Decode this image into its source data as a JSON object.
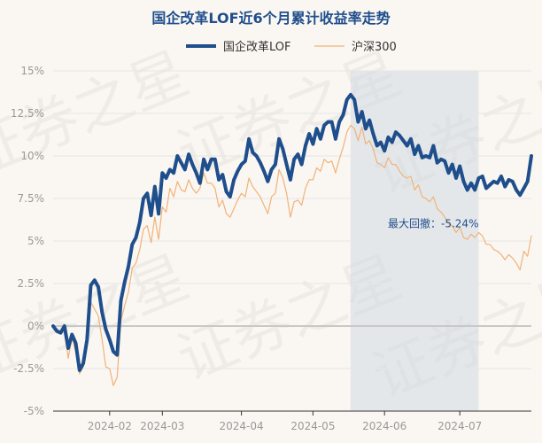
{
  "chart_data": {
    "type": "line",
    "title": "国企改革LOF近6个月累计收益率走势",
    "y_unit": "%",
    "ylim": [
      -5,
      15
    ],
    "yticks": [
      -5,
      -2.5,
      0,
      2.5,
      5,
      7.5,
      10,
      12.5,
      15
    ],
    "ytick_labels": [
      "-5%",
      "-2.5%",
      "0%",
      "2.5%",
      "5%",
      "7.5%",
      "10%",
      "12.5%",
      "15%"
    ],
    "x_range": [
      0,
      127
    ],
    "xticks": [
      {
        "label": "2024-02",
        "x": 15
      },
      {
        "label": "2024-03",
        "x": 29
      },
      {
        "label": "2024-04",
        "x": 50
      },
      {
        "label": "2024-05",
        "x": 69
      },
      {
        "label": "2024-06",
        "x": 88
      },
      {
        "label": "2024-07",
        "x": 108
      }
    ],
    "grid": true,
    "legend": "top-center",
    "max_drawdown": {
      "label": "最大回撤：-5.24%",
      "x_start": 79,
      "x_end": 113
    },
    "watermark": "证券之星",
    "series": [
      {
        "name": "国企改革LOF",
        "color": "#1f4e8c",
        "values": [
          0.0,
          -0.3,
          -0.4,
          0.0,
          -1.3,
          -0.5,
          -1.0,
          -2.6,
          -2.2,
          -0.8,
          2.4,
          2.7,
          2.3,
          0.8,
          -0.2,
          -0.8,
          -1.5,
          -1.7,
          1.5,
          2.6,
          3.5,
          4.8,
          5.2,
          6.1,
          7.5,
          7.8,
          6.5,
          8.2,
          6.6,
          9.0,
          8.7,
          9.2,
          9.0,
          10.0,
          9.6,
          9.2,
          10.1,
          9.5,
          9.0,
          8.4,
          9.8,
          9.2,
          9.8,
          9.8,
          8.6,
          8.9,
          7.9,
          7.6,
          8.6,
          9.1,
          9.5,
          9.7,
          11.0,
          10.2,
          10.0,
          9.6,
          9.1,
          8.5,
          9.2,
          9.5,
          11.0,
          10.4,
          9.5,
          8.6,
          9.8,
          10.1,
          9.5,
          10.6,
          11.3,
          10.7,
          11.6,
          11.0,
          11.8,
          12.0,
          12.0,
          11.0,
          12.0,
          12.4,
          13.3,
          13.6,
          13.3,
          12.0,
          12.6,
          11.6,
          12.1,
          11.3,
          10.6,
          10.8,
          10.3,
          11.1,
          10.8,
          11.4,
          11.2,
          10.9,
          10.6,
          11.0,
          10.1,
          10.6,
          9.9,
          10.0,
          9.9,
          10.6,
          9.6,
          9.8,
          9.7,
          9.0,
          9.5,
          8.7,
          9.4,
          8.5,
          8.0,
          8.4,
          8.0,
          8.7,
          8.8,
          8.1,
          8.3,
          8.5,
          8.4,
          8.8,
          8.2,
          8.6,
          8.5,
          8.0,
          7.7,
          8.1,
          8.5,
          10.0
        ]
      },
      {
        "name": "沪深300",
        "color": "#f0b27a",
        "values": [
          0.0,
          -0.2,
          -0.3,
          0.0,
          -1.9,
          -0.7,
          -1.5,
          -2.8,
          -2.4,
          -1.2,
          1.4,
          1.0,
          0.6,
          -0.8,
          -2.4,
          -2.5,
          -3.5,
          -3.0,
          0.3,
          1.2,
          2.0,
          3.4,
          3.7,
          4.5,
          5.7,
          5.9,
          4.9,
          6.4,
          5.1,
          7.0,
          6.7,
          8.1,
          7.6,
          8.5,
          8.0,
          7.9,
          8.6,
          8.1,
          7.8,
          8.1,
          9.0,
          8.4,
          8.4,
          8.1,
          7.0,
          7.4,
          6.6,
          6.4,
          6.9,
          7.4,
          7.8,
          7.6,
          8.7,
          8.2,
          7.9,
          7.6,
          7.1,
          6.6,
          7.6,
          7.8,
          9.2,
          8.7,
          7.8,
          6.4,
          7.3,
          7.4,
          7.1,
          8.1,
          8.6,
          8.6,
          9.3,
          9.1,
          9.8,
          9.6,
          9.7,
          9.0,
          9.8,
          10.5,
          11.4,
          11.8,
          11.6,
          10.9,
          11.7,
          10.7,
          10.9,
          10.4,
          9.6,
          9.5,
          9.3,
          9.9,
          9.5,
          9.5,
          9.1,
          8.8,
          8.7,
          8.8,
          8.0,
          8.3,
          7.6,
          7.5,
          7.3,
          7.6,
          6.9,
          6.7,
          6.4,
          6.0,
          5.9,
          5.5,
          5.8,
          5.2,
          5.1,
          5.4,
          5.2,
          5.5,
          5.3,
          4.8,
          4.8,
          4.5,
          4.4,
          4.2,
          3.9,
          4.2,
          4.0,
          3.7,
          3.3,
          4.4,
          4.1,
          5.3
        ]
      }
    ]
  }
}
